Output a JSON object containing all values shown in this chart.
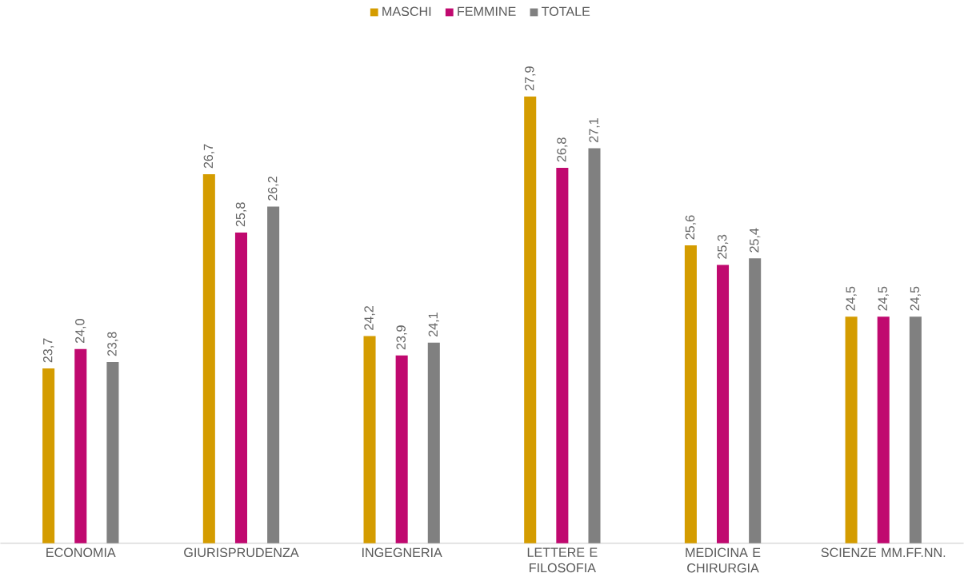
{
  "chart_data": {
    "type": "bar",
    "categories": [
      "ECONOMIA",
      "GIURISPRUDENZA",
      "INGEGNERIA",
      "LETTERE E FILOSOFIA",
      "MEDICINA E CHIRURGIA",
      "SCIENZE MM.FF.NN."
    ],
    "series": [
      {
        "name": "MASCHI",
        "color": "#d49c00",
        "values": [
          23.7,
          26.7,
          24.2,
          27.9,
          25.6,
          24.5
        ],
        "value_labels": [
          "23,7",
          "26,7",
          "24,2",
          "27,9",
          "25,6",
          "24,5"
        ]
      },
      {
        "name": "FEMMINE",
        "color": "#c0096f",
        "values": [
          24.0,
          25.8,
          23.9,
          26.8,
          25.3,
          24.5
        ],
        "value_labels": [
          "24,0",
          "25,8",
          "23,9",
          "26,8",
          "25,3",
          "24,5"
        ]
      },
      {
        "name": "TOTALE",
        "color": "#808080",
        "values": [
          23.8,
          26.2,
          24.1,
          27.1,
          25.4,
          24.5
        ],
        "value_labels": [
          "23,8",
          "26,2",
          "24,1",
          "27,1",
          "25,4",
          "24,5"
        ]
      }
    ],
    "ylim": [
      21,
      27.9
    ],
    "tick_labels": "x",
    "legend": "top"
  }
}
